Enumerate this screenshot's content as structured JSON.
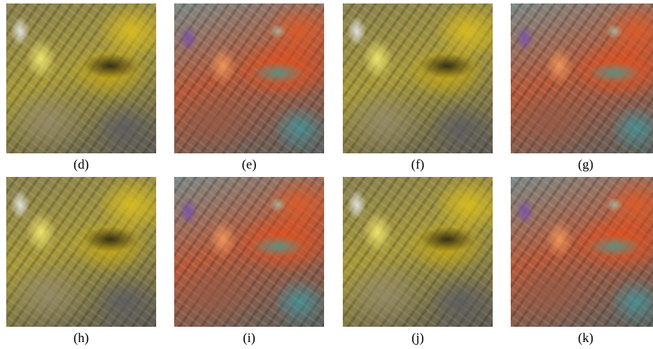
{
  "panels": [
    {
      "label": "(d)"
    },
    {
      "label": "(e)"
    },
    {
      "label": "(f)"
    },
    {
      "label": "(g)"
    },
    {
      "label": "(h)"
    },
    {
      "label": "(i)"
    },
    {
      "label": "(j)"
    },
    {
      "label": "(k)"
    }
  ]
}
